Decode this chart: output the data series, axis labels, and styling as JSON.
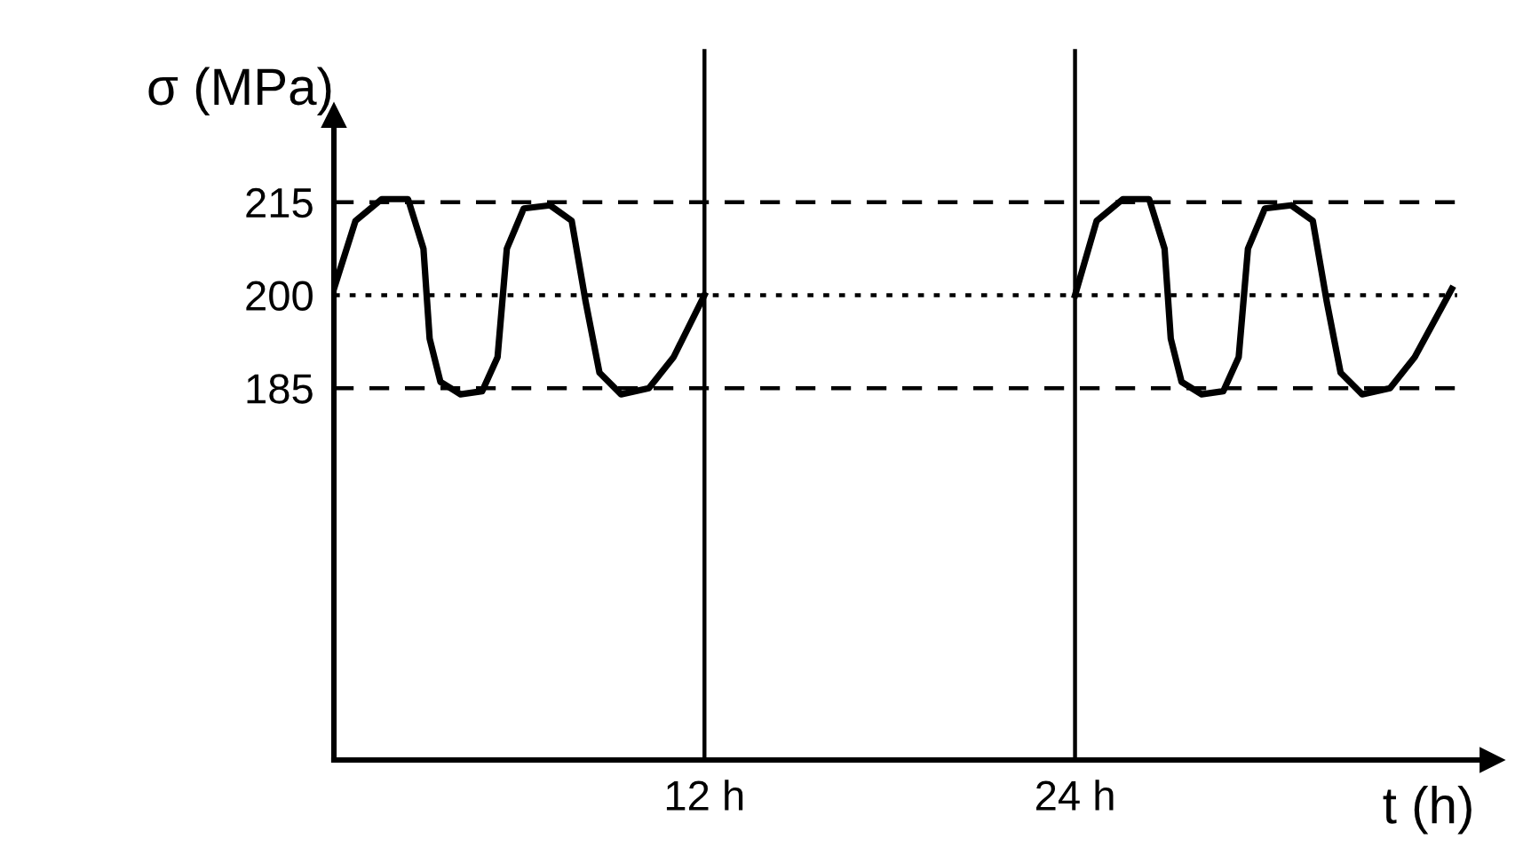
{
  "chart_data": {
    "type": "line",
    "xlabel": "t (h)",
    "ylabel": "σ (MPa)",
    "x": [
      0,
      0.7,
      1.55,
      2.4,
      2.9,
      3.1,
      3.45,
      4.1,
      4.8,
      5.3,
      5.6,
      6.15,
      7.0,
      7.7,
      8.15,
      8.6,
      9.3,
      10.2,
      11.0,
      12.0,
      18,
      24.0,
      24.7,
      25.55,
      26.4,
      26.9,
      27.1,
      27.45,
      28.1,
      28.8,
      29.3,
      29.6,
      30.15,
      31.0,
      31.7,
      32.15,
      32.6,
      33.3,
      34.2,
      35.0,
      36.2
    ],
    "series": [
      {
        "color": "#000000",
        "values": [
          201,
          212,
          215.5,
          215.5,
          207.5,
          193,
          186,
          184,
          184.5,
          190,
          207.5,
          214,
          214.5,
          212,
          199,
          187.5,
          184,
          185,
          190,
          200,
          null,
          200,
          212,
          215.5,
          215.5,
          207.5,
          193,
          186,
          184,
          184.5,
          190,
          207.5,
          214,
          214.5,
          212,
          199,
          187.5,
          184,
          185,
          190,
          201
        ]
      }
    ],
    "xlim": [
      0,
      37.5
    ],
    "ylim": [
      125,
      229
    ],
    "xticks": [
      {
        "value": 12,
        "label": "12 h"
      },
      {
        "value": 24,
        "label": "24 h"
      }
    ],
    "yticks": [
      185,
      200,
      215
    ],
    "ref_lines": [
      {
        "axis": "y",
        "value": 215,
        "line_style": "dashed",
        "color": "#000000"
      },
      {
        "axis": "y",
        "value": 200,
        "line_style": "dotted",
        "color": "#000000"
      },
      {
        "axis": "y",
        "value": 185,
        "line_style": "dashed",
        "color": "#000000"
      },
      {
        "axis": "x",
        "value": 12,
        "line_style": "solid",
        "color": "#000000"
      },
      {
        "axis": "x",
        "value": 24,
        "line_style": "solid",
        "color": "#000000"
      }
    ],
    "grid": false,
    "legend": false,
    "marker": "none",
    "line_style": "solid"
  }
}
